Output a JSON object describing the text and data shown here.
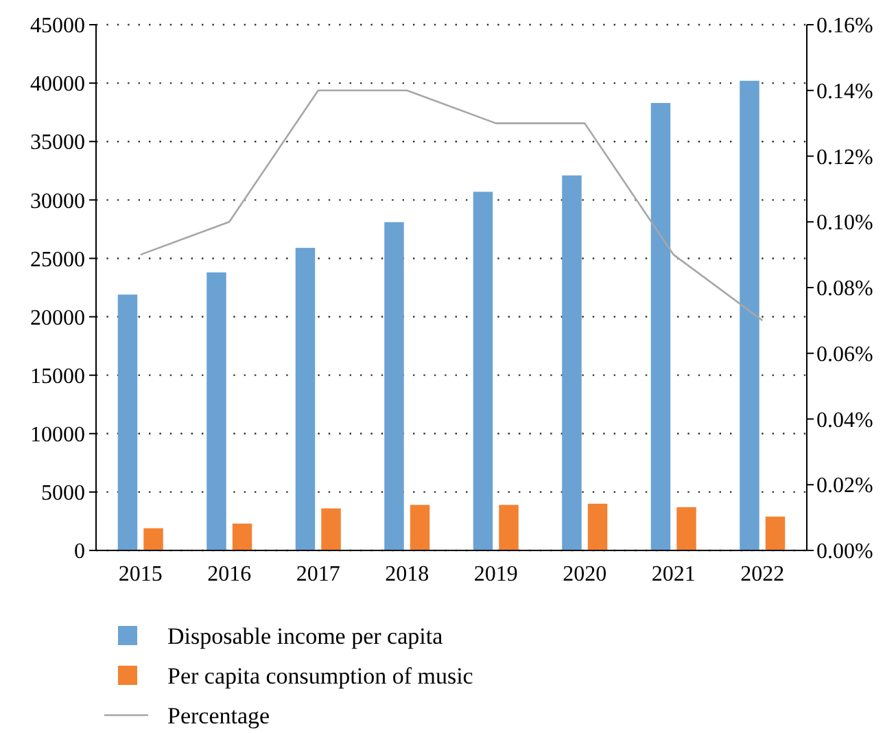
{
  "chart_data": {
    "type": "bar",
    "categories": [
      "2015",
      "2016",
      "2017",
      "2018",
      "2019",
      "2020",
      "2021",
      "2022"
    ],
    "series": [
      {
        "name": "Disposable income per capita",
        "color": "#6aa2d4",
        "values": [
          21900,
          23800,
          25900,
          28100,
          30700,
          32100,
          38300,
          40200
        ]
      },
      {
        "name": "Per capita consumption of music",
        "color": "#f28232",
        "values": [
          1900,
          2300,
          3600,
          3900,
          3900,
          4000,
          3700,
          2900
        ]
      },
      {
        "name": "Percentage",
        "type": "line",
        "axis": "y2",
        "color": "#a6a6a6",
        "values": [
          0.09,
          0.1,
          0.14,
          0.14,
          0.13,
          0.13,
          0.09,
          0.07
        ]
      }
    ],
    "ylim": [
      0,
      45000
    ],
    "yticks": [
      0,
      5000,
      10000,
      15000,
      20000,
      25000,
      30000,
      35000,
      40000,
      45000
    ],
    "y2lim": [
      0,
      0.16
    ],
    "y2ticks": [
      {
        "value": 0,
        "label": "0.00%"
      },
      {
        "value": 0.02,
        "label": "0.02%"
      },
      {
        "value": 0.04,
        "label": "0.04%"
      },
      {
        "value": 0.06,
        "label": "0.06%"
      },
      {
        "value": 0.08,
        "label": "0.08%"
      },
      {
        "value": 0.1,
        "label": "0.10%"
      },
      {
        "value": 0.12,
        "label": "0.12%"
      },
      {
        "value": 0.14,
        "label": "0.14%"
      },
      {
        "value": 0.16,
        "label": "0.16%"
      }
    ],
    "grid": "y",
    "legend": "bottom",
    "line_style": "solid"
  }
}
